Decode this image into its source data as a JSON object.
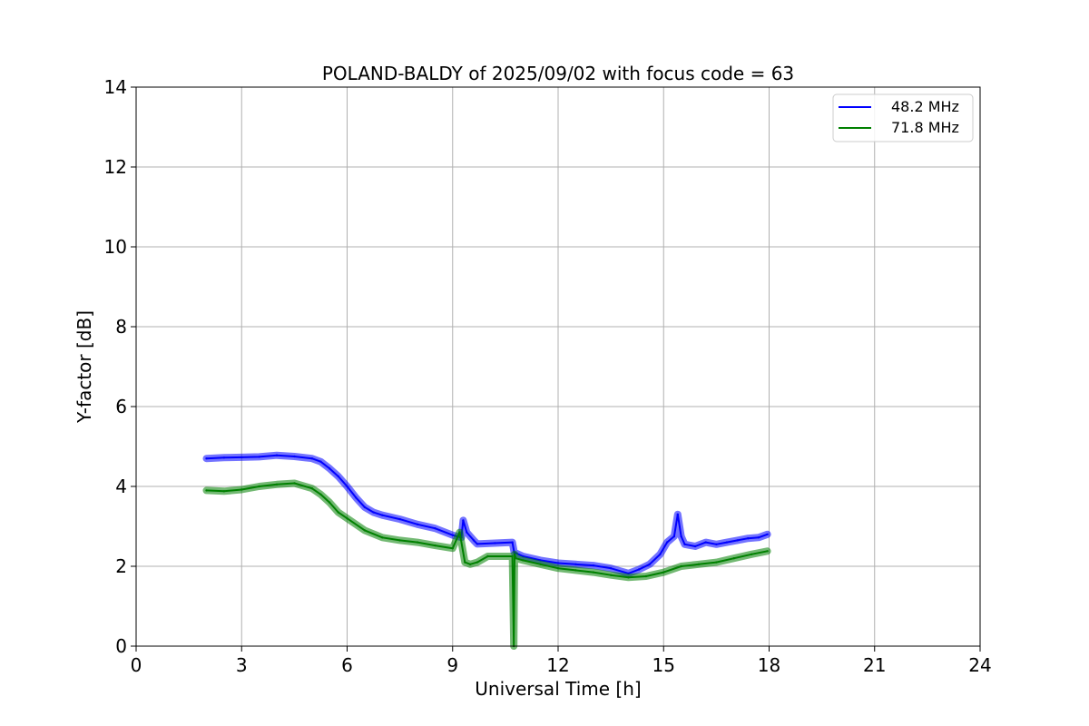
{
  "chart_data": {
    "type": "line",
    "title": "POLAND-BALDY of 2025/09/02 with focus code = 63",
    "xlabel": "Universal Time [h]",
    "ylabel": "Y-factor [dB]",
    "xlim": [
      0,
      24
    ],
    "ylim": [
      0,
      14
    ],
    "xticks": [
      0,
      3,
      6,
      9,
      12,
      15,
      18,
      21,
      24
    ],
    "yticks": [
      0,
      2,
      4,
      6,
      8,
      10,
      12,
      14
    ],
    "grid": true,
    "legend": "top-right",
    "series": [
      {
        "name": "48.2 MHz",
        "color": "#0000ff",
        "x": [
          2.0,
          2.5,
          3.0,
          3.5,
          4.0,
          4.5,
          5.0,
          5.25,
          5.5,
          5.75,
          6.0,
          6.25,
          6.5,
          6.75,
          7.0,
          7.5,
          8.0,
          8.5,
          9.0,
          9.25,
          9.3,
          9.4,
          9.6,
          9.7,
          10.2,
          10.7,
          10.75,
          11.0,
          11.5,
          12.0,
          12.5,
          13.0,
          13.5,
          14.0,
          14.3,
          14.6,
          14.9,
          15.1,
          15.3,
          15.4,
          15.5,
          15.6,
          15.9,
          16.2,
          16.5,
          16.8,
          17.1,
          17.4,
          17.7,
          17.95
        ],
        "y": [
          4.7,
          4.72,
          4.73,
          4.74,
          4.78,
          4.75,
          4.7,
          4.62,
          4.45,
          4.25,
          4.0,
          3.72,
          3.48,
          3.35,
          3.28,
          3.18,
          3.05,
          2.95,
          2.78,
          2.72,
          3.15,
          2.85,
          2.65,
          2.56,
          2.58,
          2.6,
          2.35,
          2.25,
          2.15,
          2.08,
          2.05,
          2.02,
          1.95,
          1.82,
          1.92,
          2.05,
          2.3,
          2.6,
          2.75,
          3.3,
          2.75,
          2.55,
          2.5,
          2.6,
          2.55,
          2.6,
          2.65,
          2.7,
          2.72,
          2.8
        ]
      },
      {
        "name": "71.8 MHz",
        "color": "#008000",
        "x": [
          2.0,
          2.5,
          3.0,
          3.5,
          4.0,
          4.5,
          5.0,
          5.25,
          5.5,
          5.75,
          6.0,
          6.5,
          7.0,
          7.5,
          8.0,
          8.5,
          9.0,
          9.2,
          9.35,
          9.5,
          9.7,
          10.0,
          10.7,
          10.74,
          10.76,
          10.8,
          11.0,
          11.5,
          12.0,
          12.5,
          13.0,
          13.5,
          14.0,
          14.5,
          15.0,
          15.5,
          16.0,
          16.5,
          17.0,
          17.5,
          17.95
        ],
        "y": [
          3.9,
          3.88,
          3.92,
          4.0,
          4.05,
          4.08,
          3.95,
          3.8,
          3.6,
          3.35,
          3.2,
          2.9,
          2.72,
          2.65,
          2.6,
          2.52,
          2.45,
          2.85,
          2.1,
          2.05,
          2.1,
          2.25,
          2.25,
          0.0,
          2.3,
          2.2,
          2.15,
          2.05,
          1.95,
          1.9,
          1.85,
          1.78,
          1.72,
          1.75,
          1.85,
          2.0,
          2.05,
          2.1,
          2.2,
          2.3,
          2.38
        ]
      }
    ]
  }
}
